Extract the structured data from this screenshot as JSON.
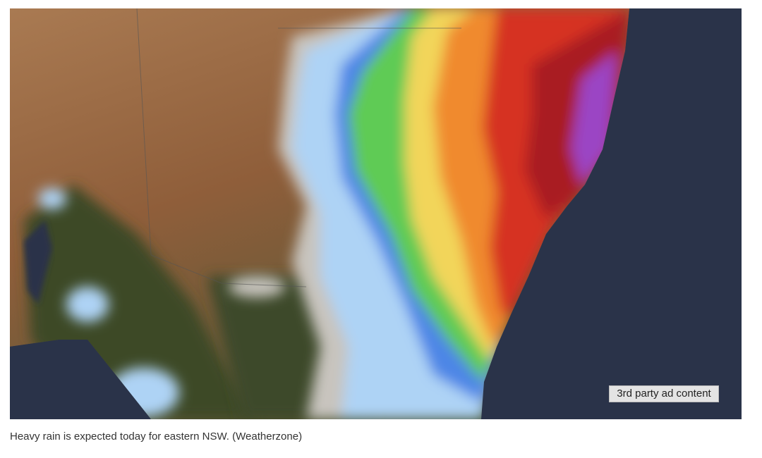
{
  "map": {
    "ad_label": "3rd party ad content"
  },
  "caption": "Heavy rain is expected today for eastern NSW. (Weatherzone)"
}
